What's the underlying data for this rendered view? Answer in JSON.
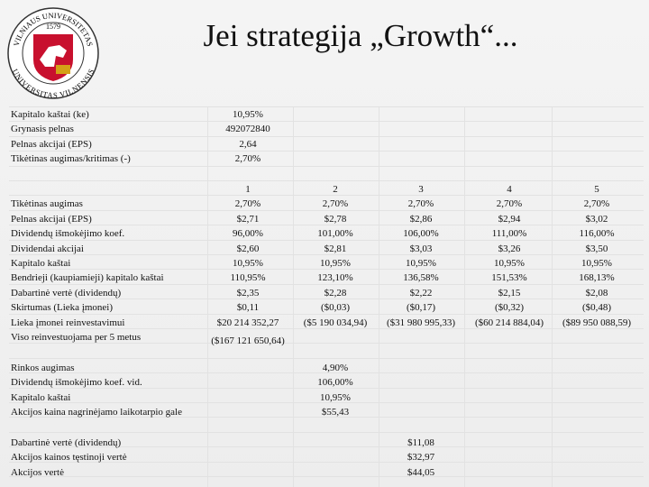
{
  "header": {
    "title": "Jei strategija „Growth“...",
    "logo": {
      "top_text": "VILNIAUS UNIVERSITETAS",
      "year": "1579",
      "bottom_text": "UNIVERSITAS VILNENSIS"
    }
  },
  "sections": [
    {
      "rows": [
        {
          "label": "Kapitalo kaštai (ke)",
          "values": [
            "10,95%"
          ]
        },
        {
          "label": "Grynasis pelnas",
          "values": [
            "492072840"
          ]
        },
        {
          "label": "Pelnas akcijai (EPS)",
          "values": [
            "2,64"
          ]
        },
        {
          "label": "Tikėtinas augimas/kritimas (-)",
          "values": [
            "2,70%"
          ]
        }
      ]
    },
    {
      "columns": [
        "1",
        "2",
        "3",
        "4",
        "5"
      ],
      "rows": [
        {
          "label": "Tikėtinas augimas",
          "values": [
            "2,70%",
            "2,70%",
            "2,70%",
            "2,70%",
            "2,70%"
          ]
        },
        {
          "label": "Pelnas akcijai (EPS)",
          "values": [
            "$2,71",
            "$2,78",
            "$2,86",
            "$2,94",
            "$3,02"
          ]
        },
        {
          "label": "Dividendų išmokėjimo koef.",
          "values": [
            "96,00%",
            "101,00%",
            "106,00%",
            "111,00%",
            "116,00%"
          ]
        },
        {
          "label": "Dividendai akcijai",
          "values": [
            "$2,60",
            "$2,81",
            "$3,03",
            "$3,26",
            "$3,50"
          ]
        },
        {
          "label": "Kapitalo kaštai",
          "values": [
            "10,95%",
            "10,95%",
            "10,95%",
            "10,95%",
            "10,95%"
          ]
        },
        {
          "label": "Bendrieji (kaupiamieji) kapitalo kaštai",
          "values": [
            "110,95%",
            "123,10%",
            "136,58%",
            "151,53%",
            "168,13%"
          ]
        },
        {
          "label": "Dabartinė vertė (dividendų)",
          "values": [
            "$2,35",
            "$2,28",
            "$2,22",
            "$2,15",
            "$2,08"
          ]
        },
        {
          "label": "Skirtumas (Lieka įmonei)",
          "values": [
            "$0,11",
            "($0,03)",
            "($0,17)",
            "($0,32)",
            "($0,48)"
          ]
        },
        {
          "label": "Lieka įmonei reinvestavimui",
          "values": [
            "$20 214 352,27",
            "($5 190 034,94)",
            "($31 980 995,33)",
            "($60 214 884,04)",
            "($89 950 088,59)"
          ]
        },
        {
          "label": "Viso reinvestuojama per 5 metus",
          "values": [
            "($167 121 650,64)"
          ]
        }
      ]
    },
    {
      "rows": [
        {
          "label": "Rinkos augimas",
          "values": [
            null,
            "4,90%"
          ]
        },
        {
          "label": "Dividendų išmokėjimo koef. vid.",
          "values": [
            null,
            "106,00%"
          ]
        },
        {
          "label": "Kapitalo kaštai",
          "values": [
            null,
            "10,95%"
          ]
        },
        {
          "label": "Akcijos kaina nagrinėjamo laikotarpio gale",
          "values": [
            null,
            "$55,43"
          ]
        }
      ]
    },
    {
      "rows": [
        {
          "label": "Dabartinė vertė (dividendų)",
          "values": [
            null,
            null,
            "$11,08"
          ]
        },
        {
          "label": "Akcijos kainos tęstinoji vertė",
          "values": [
            null,
            null,
            "$32,97"
          ]
        },
        {
          "label": "Akcijos vertė",
          "values": [
            null,
            null,
            "$44,05"
          ]
        }
      ]
    }
  ]
}
